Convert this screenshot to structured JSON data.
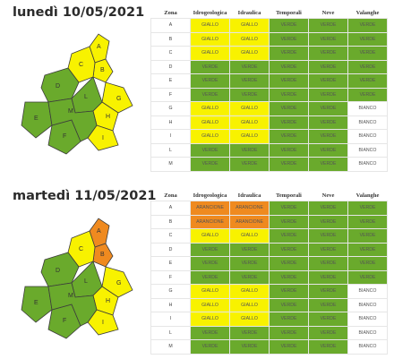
{
  "headers": [
    "Zona",
    "Idrogeologica",
    "Idraulica",
    "Temporali",
    "Neve",
    "Valanghe"
  ],
  "colors": {
    "giallo": "#f8f200",
    "verde": "#6aaa2c",
    "arancione": "#ef8a1f",
    "bianco": "#ffffff"
  },
  "days": [
    {
      "title": "lunedì 10/05/2021",
      "map_zone_colors": {
        "A": "giallo",
        "B": "giallo",
        "C": "giallo",
        "D": "verde",
        "E": "verde",
        "F": "verde",
        "G": "giallo",
        "H": "giallo",
        "I": "giallo",
        "L": "verde",
        "M": "verde"
      },
      "rows": [
        {
          "zona": "A",
          "cells": [
            {
              "label": "GIALLO",
              "color": "giallo"
            },
            {
              "label": "GIALLO",
              "color": "giallo"
            },
            {
              "label": "VERDE",
              "color": "verde"
            },
            {
              "label": "VERDE",
              "color": "verde"
            },
            {
              "label": "VERDE",
              "color": "verde"
            }
          ]
        },
        {
          "zona": "B",
          "cells": [
            {
              "label": "GIALLO",
              "color": "giallo"
            },
            {
              "label": "GIALLO",
              "color": "giallo"
            },
            {
              "label": "VERDE",
              "color": "verde"
            },
            {
              "label": "VERDE",
              "color": "verde"
            },
            {
              "label": "VERDE",
              "color": "verde"
            }
          ]
        },
        {
          "zona": "C",
          "cells": [
            {
              "label": "GIALLO",
              "color": "giallo"
            },
            {
              "label": "GIALLO",
              "color": "giallo"
            },
            {
              "label": "VERDE",
              "color": "verde"
            },
            {
              "label": "VERDE",
              "color": "verde"
            },
            {
              "label": "VERDE",
              "color": "verde"
            }
          ]
        },
        {
          "zona": "D",
          "cells": [
            {
              "label": "VERDE",
              "color": "verde"
            },
            {
              "label": "VERDE",
              "color": "verde"
            },
            {
              "label": "VERDE",
              "color": "verde"
            },
            {
              "label": "VERDE",
              "color": "verde"
            },
            {
              "label": "VERDE",
              "color": "verde"
            }
          ]
        },
        {
          "zona": "E",
          "cells": [
            {
              "label": "VERDE",
              "color": "verde"
            },
            {
              "label": "VERDE",
              "color": "verde"
            },
            {
              "label": "VERDE",
              "color": "verde"
            },
            {
              "label": "VERDE",
              "color": "verde"
            },
            {
              "label": "VERDE",
              "color": "verde"
            }
          ]
        },
        {
          "zona": "F",
          "cells": [
            {
              "label": "VERDE",
              "color": "verde"
            },
            {
              "label": "VERDE",
              "color": "verde"
            },
            {
              "label": "VERDE",
              "color": "verde"
            },
            {
              "label": "VERDE",
              "color": "verde"
            },
            {
              "label": "VERDE",
              "color": "verde"
            }
          ]
        },
        {
          "zona": "G",
          "cells": [
            {
              "label": "GIALLO",
              "color": "giallo"
            },
            {
              "label": "GIALLO",
              "color": "giallo"
            },
            {
              "label": "VERDE",
              "color": "verde"
            },
            {
              "label": "VERDE",
              "color": "verde"
            },
            {
              "label": "BIANCO",
              "color": "bianco"
            }
          ]
        },
        {
          "zona": "H",
          "cells": [
            {
              "label": "GIALLO",
              "color": "giallo"
            },
            {
              "label": "GIALLO",
              "color": "giallo"
            },
            {
              "label": "VERDE",
              "color": "verde"
            },
            {
              "label": "VERDE",
              "color": "verde"
            },
            {
              "label": "BIANCO",
              "color": "bianco"
            }
          ]
        },
        {
          "zona": "I",
          "cells": [
            {
              "label": "GIALLO",
              "color": "giallo"
            },
            {
              "label": "GIALLO",
              "color": "giallo"
            },
            {
              "label": "VERDE",
              "color": "verde"
            },
            {
              "label": "VERDE",
              "color": "verde"
            },
            {
              "label": "BIANCO",
              "color": "bianco"
            }
          ]
        },
        {
          "zona": "L",
          "cells": [
            {
              "label": "VERDE",
              "color": "verde"
            },
            {
              "label": "VERDE",
              "color": "verde"
            },
            {
              "label": "VERDE",
              "color": "verde"
            },
            {
              "label": "VERDE",
              "color": "verde"
            },
            {
              "label": "BIANCO",
              "color": "bianco"
            }
          ]
        },
        {
          "zona": "M",
          "cells": [
            {
              "label": "VERDE",
              "color": "verde"
            },
            {
              "label": "VERDE",
              "color": "verde"
            },
            {
              "label": "VERDE",
              "color": "verde"
            },
            {
              "label": "VERDE",
              "color": "verde"
            },
            {
              "label": "BIANCO",
              "color": "bianco"
            }
          ]
        }
      ]
    },
    {
      "title": "martedì 11/05/2021",
      "map_zone_colors": {
        "A": "arancione",
        "B": "arancione",
        "C": "giallo",
        "D": "verde",
        "E": "verde",
        "F": "verde",
        "G": "giallo",
        "H": "giallo",
        "I": "giallo",
        "L": "verde",
        "M": "verde"
      },
      "rows": [
        {
          "zona": "A",
          "cells": [
            {
              "label": "ARANCIONE",
              "color": "arancione"
            },
            {
              "label": "ARANCIONE",
              "color": "arancione"
            },
            {
              "label": "VERDE",
              "color": "verde"
            },
            {
              "label": "VERDE",
              "color": "verde"
            },
            {
              "label": "VERDE",
              "color": "verde"
            }
          ]
        },
        {
          "zona": "B",
          "cells": [
            {
              "label": "ARANCIONE",
              "color": "arancione"
            },
            {
              "label": "ARANCIONE",
              "color": "arancione"
            },
            {
              "label": "VERDE",
              "color": "verde"
            },
            {
              "label": "VERDE",
              "color": "verde"
            },
            {
              "label": "VERDE",
              "color": "verde"
            }
          ]
        },
        {
          "zona": "C",
          "cells": [
            {
              "label": "GIALLO",
              "color": "giallo"
            },
            {
              "label": "GIALLO",
              "color": "giallo"
            },
            {
              "label": "VERDE",
              "color": "verde"
            },
            {
              "label": "VERDE",
              "color": "verde"
            },
            {
              "label": "VERDE",
              "color": "verde"
            }
          ]
        },
        {
          "zona": "D",
          "cells": [
            {
              "label": "VERDE",
              "color": "verde"
            },
            {
              "label": "VERDE",
              "color": "verde"
            },
            {
              "label": "VERDE",
              "color": "verde"
            },
            {
              "label": "VERDE",
              "color": "verde"
            },
            {
              "label": "VERDE",
              "color": "verde"
            }
          ]
        },
        {
          "zona": "E",
          "cells": [
            {
              "label": "VERDE",
              "color": "verde"
            },
            {
              "label": "VERDE",
              "color": "verde"
            },
            {
              "label": "VERDE",
              "color": "verde"
            },
            {
              "label": "VERDE",
              "color": "verde"
            },
            {
              "label": "VERDE",
              "color": "verde"
            }
          ]
        },
        {
          "zona": "F",
          "cells": [
            {
              "label": "VERDE",
              "color": "verde"
            },
            {
              "label": "VERDE",
              "color": "verde"
            },
            {
              "label": "VERDE",
              "color": "verde"
            },
            {
              "label": "VERDE",
              "color": "verde"
            },
            {
              "label": "VERDE",
              "color": "verde"
            }
          ]
        },
        {
          "zona": "G",
          "cells": [
            {
              "label": "GIALLO",
              "color": "giallo"
            },
            {
              "label": "GIALLO",
              "color": "giallo"
            },
            {
              "label": "VERDE",
              "color": "verde"
            },
            {
              "label": "VERDE",
              "color": "verde"
            },
            {
              "label": "BIANCO",
              "color": "bianco"
            }
          ]
        },
        {
          "zona": "H",
          "cells": [
            {
              "label": "GIALLO",
              "color": "giallo"
            },
            {
              "label": "GIALLO",
              "color": "giallo"
            },
            {
              "label": "VERDE",
              "color": "verde"
            },
            {
              "label": "VERDE",
              "color": "verde"
            },
            {
              "label": "BIANCO",
              "color": "bianco"
            }
          ]
        },
        {
          "zona": "I",
          "cells": [
            {
              "label": "GIALLO",
              "color": "giallo"
            },
            {
              "label": "GIALLO",
              "color": "giallo"
            },
            {
              "label": "VERDE",
              "color": "verde"
            },
            {
              "label": "VERDE",
              "color": "verde"
            },
            {
              "label": "BIANCO",
              "color": "bianco"
            }
          ]
        },
        {
          "zona": "L",
          "cells": [
            {
              "label": "VERDE",
              "color": "verde"
            },
            {
              "label": "VERDE",
              "color": "verde"
            },
            {
              "label": "VERDE",
              "color": "verde"
            },
            {
              "label": "VERDE",
              "color": "verde"
            },
            {
              "label": "BIANCO",
              "color": "bianco"
            }
          ]
        },
        {
          "zona": "M",
          "cells": [
            {
              "label": "VERDE",
              "color": "verde"
            },
            {
              "label": "VERDE",
              "color": "verde"
            },
            {
              "label": "VERDE",
              "color": "verde"
            },
            {
              "label": "VERDE",
              "color": "verde"
            },
            {
              "label": "BIANCO",
              "color": "bianco"
            }
          ]
        }
      ]
    }
  ]
}
